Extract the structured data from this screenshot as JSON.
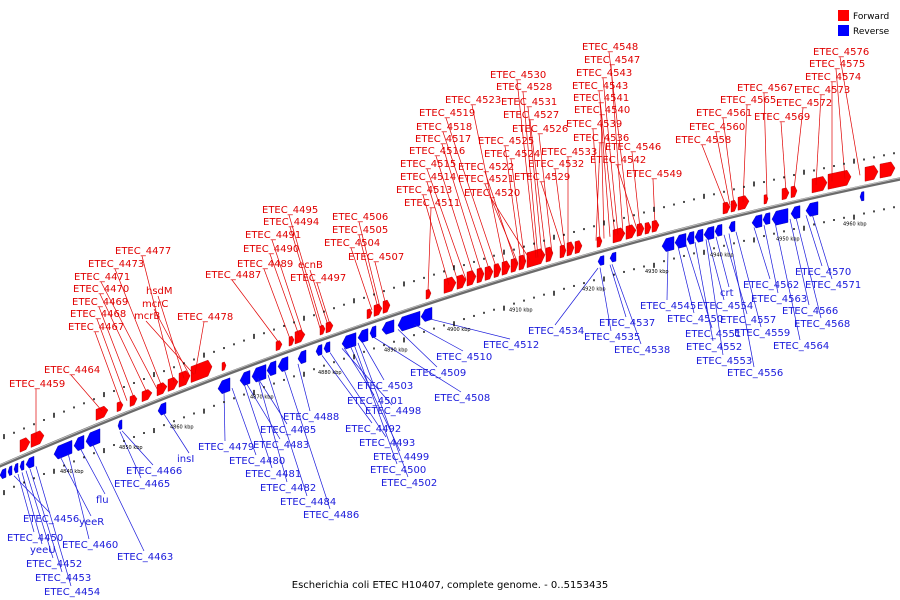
{
  "legend": {
    "forward_label": "Forward",
    "reverse_label": "Reverse",
    "forward_color": "#ff0000",
    "reverse_color": "#0000ff"
  },
  "caption": "Escherichia coli ETEC H10407, complete genome. - 0..5153435",
  "axis": {
    "ticks": [
      "4840 kbp",
      "4850 kbp",
      "4860 kbp",
      "4870 kbp",
      "4880 kbp",
      "4890 kbp",
      "4900 kbp",
      "4910 kbp",
      "4920 kbp",
      "4930 kbp",
      "4940 kbp",
      "4950 kbp",
      "4960 kbp"
    ]
  },
  "forward_labels": [
    "ETEC_4459",
    "ETEC_4464",
    "ETEC_4467",
    "ETEC_4468",
    "ETEC_4469",
    "ETEC_4470",
    "ETEC_4471",
    "ETEC_4473",
    "ETEC_4477",
    "hsdM",
    "mcrC",
    "mcrB",
    "ETEC_4478",
    "ETEC_4487",
    "ETEC_4489",
    "ETEC_4490",
    "ETEC_4491",
    "ETEC_4494",
    "ETEC_4495",
    "ecnB",
    "ETEC_4497",
    "ETEC_4504",
    "ETEC_4505",
    "ETEC_4506",
    "ETEC_4507",
    "ETEC_4511",
    "ETEC_4513",
    "ETEC_4514",
    "ETEC_4515",
    "ETEC_4516",
    "ETEC_4517",
    "ETEC_4518",
    "ETEC_4519",
    "ETEC_4523",
    "ETEC_4530",
    "ETEC_4528",
    "ETEC_4531",
    "ETEC_4527",
    "ETEC_4526",
    "ETEC_4525",
    "ETEC_4524",
    "ETEC_4522",
    "ETEC_4521",
    "ETEC_4520",
    "ETEC_4533",
    "ETEC_4532",
    "ETEC_4529",
    "ETEC_4536",
    "ETEC_4539",
    "ETEC_4540",
    "ETEC_4541",
    "ETEC_4543",
    "ETEC_4543",
    "ETEC_4547",
    "ETEC_4548",
    "ETEC_4546",
    "ETEC_4542",
    "ETEC_4549",
    "ETEC_4558",
    "ETEC_4560",
    "ETEC_4561",
    "ETEC_4565",
    "ETEC_4567",
    "ETEC_4569",
    "ETEC_4572",
    "ETEC_4573",
    "ETEC_4574",
    "ETEC_4575",
    "ETEC_4576"
  ],
  "reverse_labels": [
    "ETEC_4456",
    "ETEC_4450",
    "yeeU",
    "ETEC_4452",
    "ETEC_4453",
    "ETEC_4454",
    "yeeR",
    "ETEC_4460",
    "flu",
    "ETEC_4463",
    "ETEC_4465",
    "ETEC_4466",
    "insI",
    "ETEC_4479",
    "ETEC_4480",
    "ETEC_4481",
    "ETEC_4482",
    "ETEC_4483",
    "ETEC_4484",
    "ETEC_4485",
    "ETEC_4486",
    "ETEC_4488",
    "ETEC_4492",
    "ETEC_4493",
    "ETEC_4498",
    "ETEC_4499",
    "ETEC_4500",
    "ETEC_4501",
    "ETEC_4502",
    "ETEC_4503",
    "ETEC_4508",
    "ETEC_4509",
    "ETEC_4510",
    "ETEC_4512",
    "ETEC_4534",
    "ETEC_4537",
    "ETEC_4535",
    "ETEC_4538",
    "ETEC_4545",
    "ETEC_4550",
    "ETEC_4551",
    "ETEC_4552",
    "ETEC_4553",
    "ETEC_4554",
    "crt",
    "ETEC_4557",
    "ETEC_4556",
    "ETEC_4559",
    "ETEC_4562",
    "ETEC_4563",
    "ETEC_4564",
    "ETEC_4566",
    "ETEC_4568",
    "ETEC_4570",
    "ETEC_4571"
  ]
}
